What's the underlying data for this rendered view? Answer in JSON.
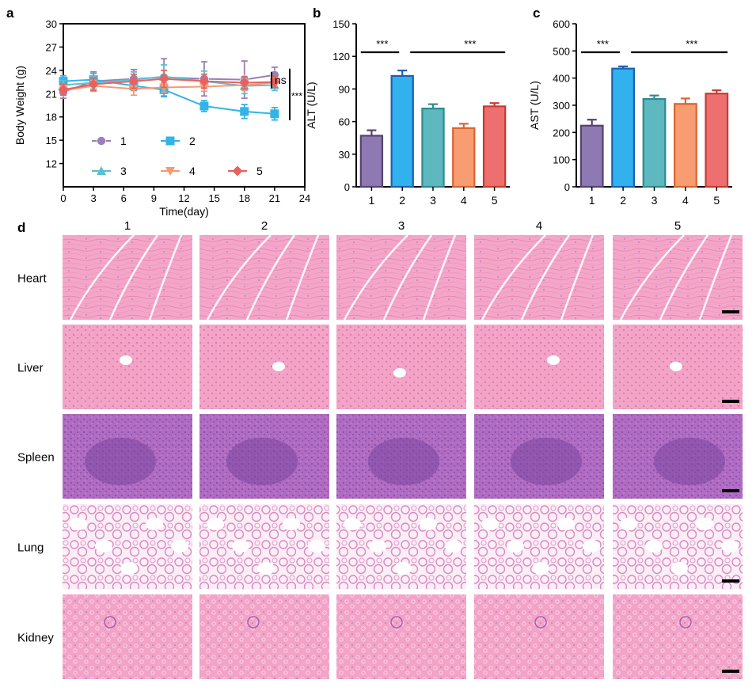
{
  "panel_labels": {
    "a": "a",
    "b": "b",
    "c": "c",
    "d": "d"
  },
  "colors": {
    "g1": "#9b7fb6",
    "g2": "#33b3e8",
    "g3": "#5bc0cf",
    "g4": "#f59a72",
    "g5": "#e8615f",
    "bar_edge": [
      "#54436e",
      "#1f5fb0",
      "#2f8a8f",
      "#d8652f",
      "#c93a30"
    ],
    "bar_fill": [
      "#8f79b3",
      "#31b2ee",
      "#5eb8c0",
      "#f89c72",
      "#ed6f70"
    ]
  },
  "chart_data": [
    {
      "id": "a",
      "type": "line",
      "xlabel": "Time(day)",
      "ylabel": "Body Weight (g)",
      "xlim": [
        0,
        24
      ],
      "ylim": [
        9,
        30
      ],
      "xticks": [
        0,
        3,
        6,
        9,
        12,
        15,
        18,
        21,
        24
      ],
      "yticks": [
        12,
        15,
        18,
        21,
        24,
        27,
        30
      ],
      "series": [
        {
          "name": "1",
          "marker": "circle",
          "x": [
            0,
            3,
            7,
            10,
            14,
            18,
            21
          ],
          "y": [
            21.2,
            22.6,
            22.9,
            23.1,
            22.9,
            22.8,
            23.4
          ],
          "err": [
            0.8,
            1.2,
            1.2,
            2.4,
            2.2,
            2.4,
            1.0
          ]
        },
        {
          "name": "2",
          "marker": "square",
          "x": [
            0,
            3,
            7,
            10,
            14,
            18,
            21
          ],
          "y": [
            22.6,
            22.8,
            22.0,
            21.5,
            19.4,
            18.7,
            18.4
          ],
          "err": [
            0.7,
            0.8,
            0.6,
            0.9,
            0.7,
            0.9,
            0.8
          ]
        },
        {
          "name": "3",
          "marker": "triangle",
          "x": [
            0,
            3,
            7,
            10,
            14,
            18,
            21
          ],
          "y": [
            22.1,
            22.4,
            22.8,
            23.2,
            22.6,
            22.0,
            22.1
          ],
          "err": [
            0.6,
            0.8,
            1.0,
            1.5,
            1.3,
            1.0,
            0.7
          ]
        },
        {
          "name": "4",
          "marker": "triangle-down",
          "x": [
            0,
            3,
            7,
            10,
            14,
            18,
            21
          ],
          "y": [
            21.4,
            22.0,
            21.6,
            21.8,
            21.9,
            22.1,
            22.4
          ],
          "err": [
            0.6,
            0.7,
            0.8,
            0.6,
            0.6,
            0.7,
            0.6
          ]
        },
        {
          "name": "5",
          "marker": "diamond",
          "x": [
            0,
            3,
            7,
            10,
            14,
            18,
            21
          ],
          "y": [
            21.5,
            22.2,
            22.6,
            22.9,
            22.6,
            22.4,
            22.5
          ],
          "err": [
            0.7,
            0.8,
            0.9,
            1.1,
            0.9,
            0.8,
            0.7
          ]
        }
      ],
      "annotations": [
        "ns",
        "***"
      ]
    },
    {
      "id": "b",
      "type": "bar",
      "ylabel": "ALT (U/L)",
      "ylim": [
        0,
        150
      ],
      "yticks": [
        0,
        30,
        60,
        90,
        120,
        150
      ],
      "categories": [
        "1",
        "2",
        "3",
        "4",
        "5"
      ],
      "values": [
        47,
        102,
        72,
        54,
        74
      ],
      "err": [
        5,
        5,
        4,
        4,
        3
      ],
      "significance": [
        {
          "label": "***"
        },
        {
          "label": "***"
        }
      ]
    },
    {
      "id": "c",
      "type": "bar",
      "ylabel": "AST (U/L)",
      "ylim": [
        0,
        600
      ],
      "yticks": [
        0,
        100,
        200,
        300,
        400,
        500,
        600
      ],
      "categories": [
        "1",
        "2",
        "3",
        "4",
        "5"
      ],
      "values": [
        225,
        435,
        323,
        305,
        343
      ],
      "err": [
        22,
        8,
        13,
        20,
        12
      ],
      "significance": [
        {
          "label": "***"
        },
        {
          "label": "***"
        }
      ]
    }
  ],
  "histology": {
    "columns": [
      "1",
      "2",
      "3",
      "4",
      "5"
    ],
    "rows": [
      "Heart",
      "Liver",
      "Spleen",
      "Lung",
      "Kidney"
    ]
  }
}
